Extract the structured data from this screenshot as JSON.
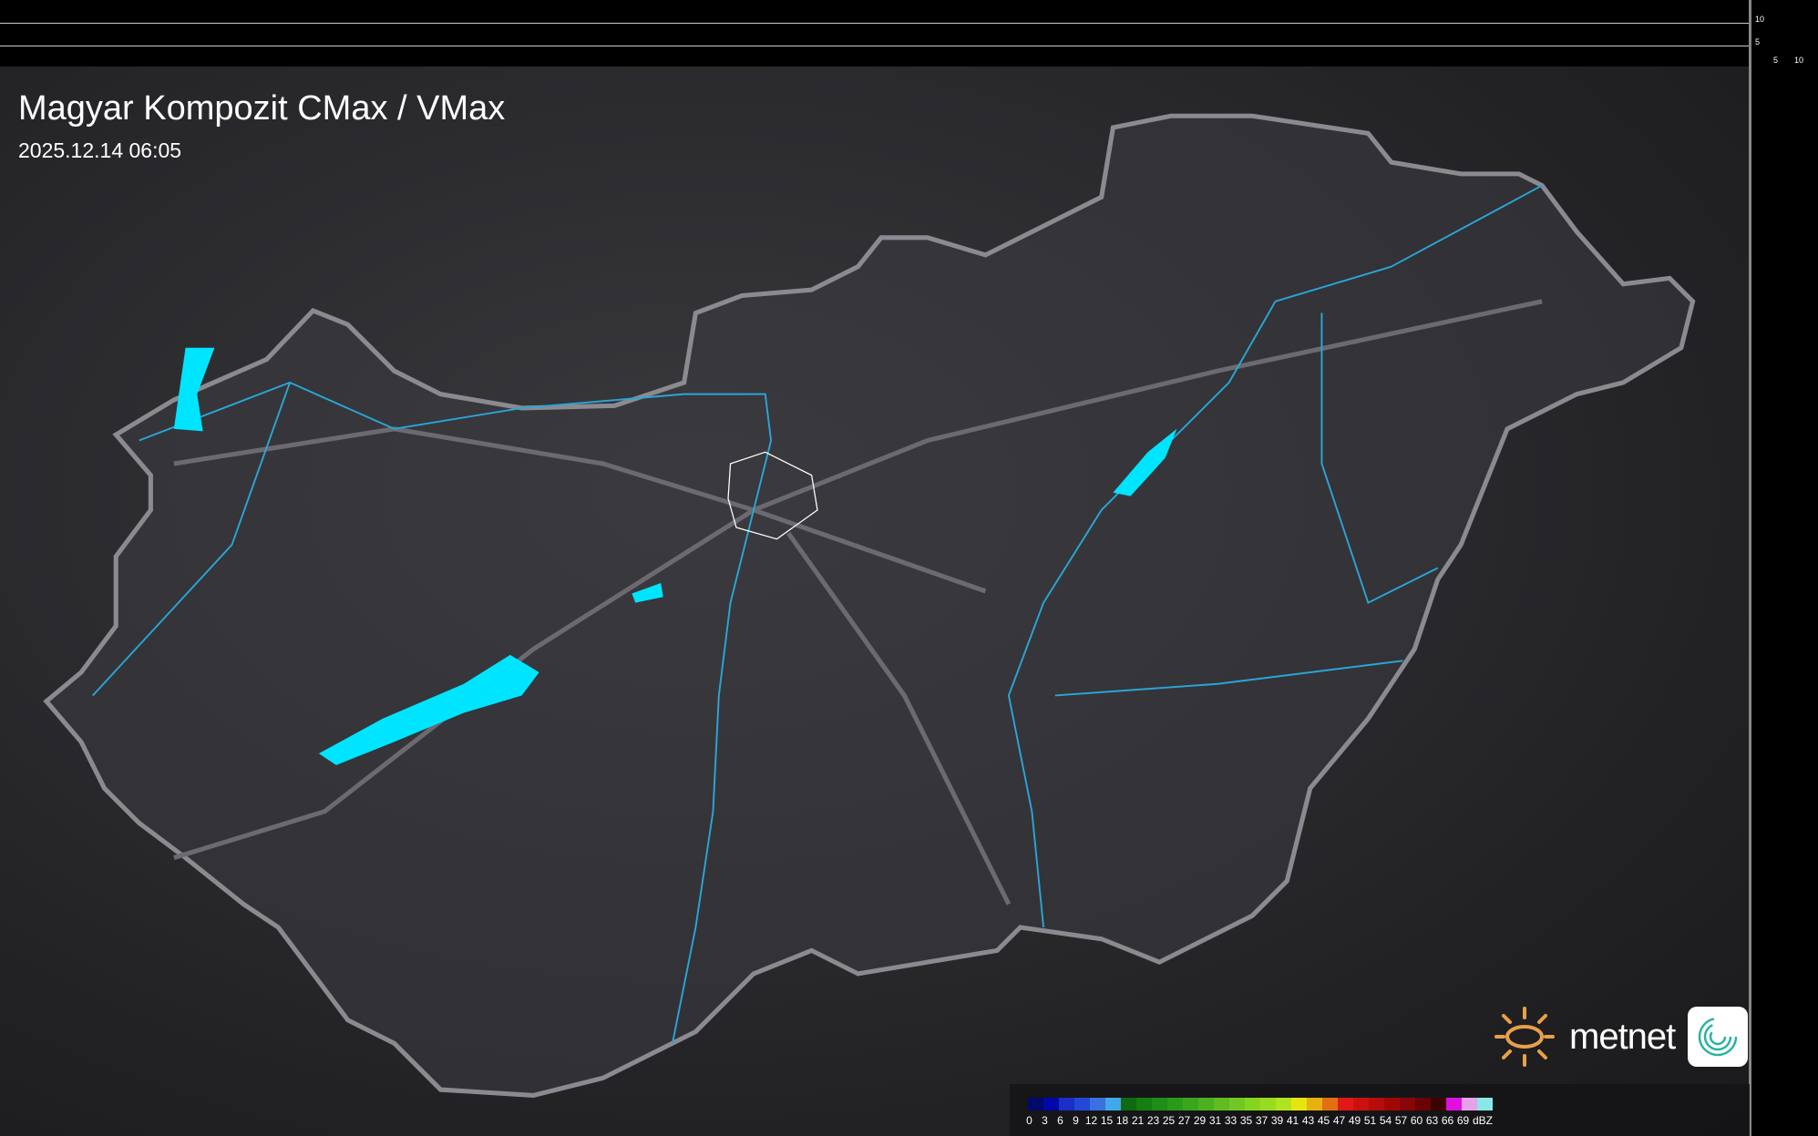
{
  "title": "Magyar Kompozit CMax / VMax",
  "timestamp": "2025.12.14 06:05",
  "scale_ticks": {
    "left_10": "10",
    "left_5": "5",
    "bottom_5": "5",
    "bottom_10": "10"
  },
  "logo": {
    "text": "metnet",
    "sun_color": "#e8a04a"
  },
  "colors": {
    "lake": "#00e5ff",
    "river": "#2aa6d8",
    "border": "#8a8a90",
    "road": "#6a6a70",
    "county": "#ffffff"
  },
  "legend": {
    "unit": "dBZ",
    "labels": [
      "0",
      "3",
      "6",
      "9",
      "12",
      "15",
      "18",
      "21",
      "23",
      "25",
      "27",
      "29",
      "31",
      "33",
      "35",
      "37",
      "39",
      "41",
      "43",
      "45",
      "47",
      "49",
      "51",
      "54",
      "57",
      "60",
      "63",
      "66",
      "69"
    ],
    "colors": [
      "#000a6a",
      "#0008a8",
      "#1a2ec8",
      "#2448d6",
      "#3a70e0",
      "#40a8e8",
      "#0f6a10",
      "#157e12",
      "#1e8e16",
      "#2a9a1a",
      "#3aa61e",
      "#4cb020",
      "#60bc20",
      "#72c822",
      "#86d422",
      "#98dc22",
      "#b0e420",
      "#e8e410",
      "#e8b010",
      "#e07010",
      "#e01818",
      "#cc1010",
      "#b80c0c",
      "#a00808",
      "#880606",
      "#6a0404",
      "#3a0202",
      "#e010e0",
      "#e8a0e8",
      "#88e8e8"
    ]
  }
}
